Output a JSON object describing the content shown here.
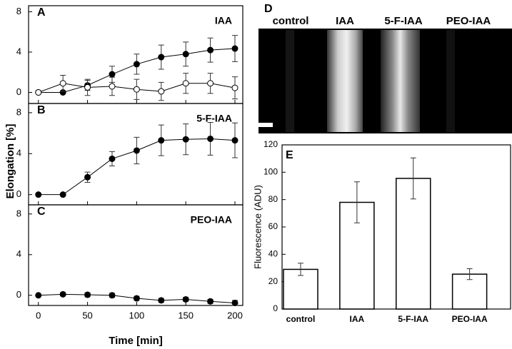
{
  "chart_data": [
    {
      "type": "line",
      "panel": "A",
      "title": "IAA",
      "x": [
        0,
        25,
        50,
        75,
        100,
        125,
        150,
        175,
        200
      ],
      "series": [
        {
          "color": "#000000",
          "values": [
            0,
            0,
            0.7,
            1.8,
            2.8,
            3.5,
            3.8,
            4.2,
            4.35
          ],
          "errors": [
            0,
            0,
            0.5,
            0.8,
            1.0,
            1.2,
            1.2,
            1.2,
            1.3
          ]
        },
        {
          "color": "#ffffff",
          "values": [
            0,
            0.9,
            0.5,
            0.6,
            0.3,
            0.1,
            0.9,
            0.9,
            0.45
          ],
          "errors": [
            0,
            0.8,
            0.8,
            0.9,
            1.0,
            0.9,
            1.0,
            1.0,
            1.1
          ]
        }
      ],
      "xlim": [
        -10,
        208
      ],
      "ylim": [
        -1.1,
        8.6
      ],
      "yticks": [
        0,
        4,
        8
      ]
    },
    {
      "type": "line",
      "panel": "B",
      "title": "5-F-IAA",
      "ylabel": "Elongation [%]",
      "x": [
        0,
        25,
        50,
        75,
        100,
        125,
        150,
        175,
        200
      ],
      "series": [
        {
          "color": "#000000",
          "values": [
            0,
            0,
            1.7,
            3.5,
            4.3,
            5.3,
            5.4,
            5.45,
            5.3
          ],
          "errors": [
            0,
            0,
            0.5,
            0.7,
            1.3,
            1.5,
            1.5,
            1.6,
            1.7
          ]
        }
      ],
      "xlim": [
        -10,
        208
      ],
      "ylim": [
        -1,
        8.9
      ],
      "yticks": [
        0,
        4,
        8
      ]
    },
    {
      "type": "line",
      "panel": "C",
      "title": "PEO-IAA",
      "xlabel": "Time [min]",
      "x": [
        0,
        25,
        50,
        75,
        100,
        125,
        150,
        175,
        200
      ],
      "series": [
        {
          "color": "#000000",
          "values": [
            0,
            0.1,
            0.05,
            0,
            -0.3,
            -0.5,
            -0.4,
            -0.6,
            -0.75
          ],
          "errors": [
            0.1,
            0.15,
            0.2,
            0.2,
            0.2,
            0.2,
            0.2,
            0.2,
            0.25
          ]
        }
      ],
      "xlim": [
        -10,
        208
      ],
      "ylim": [
        -1,
        8.9
      ],
      "yticks": [
        0,
        4,
        8
      ],
      "xticks": [
        0,
        50,
        100,
        150,
        200
      ]
    },
    {
      "type": "bar",
      "panel": "E",
      "ylabel": "Fluorescence (ADU)",
      "categories": [
        "control",
        "IAA",
        "5-F-IAA",
        "PEO-IAA"
      ],
      "values": [
        29,
        78,
        95.5,
        25.5
      ],
      "errors": [
        4.5,
        15,
        15,
        4
      ],
      "color": "#ffffff",
      "ylim": [
        0,
        120
      ],
      "yticks": [
        0,
        20,
        40,
        60,
        80,
        100,
        120
      ]
    }
  ],
  "image_panel": {
    "panel": "D",
    "labels": [
      "control",
      "IAA",
      "5-F-IAA",
      "PEO-IAA"
    ]
  }
}
